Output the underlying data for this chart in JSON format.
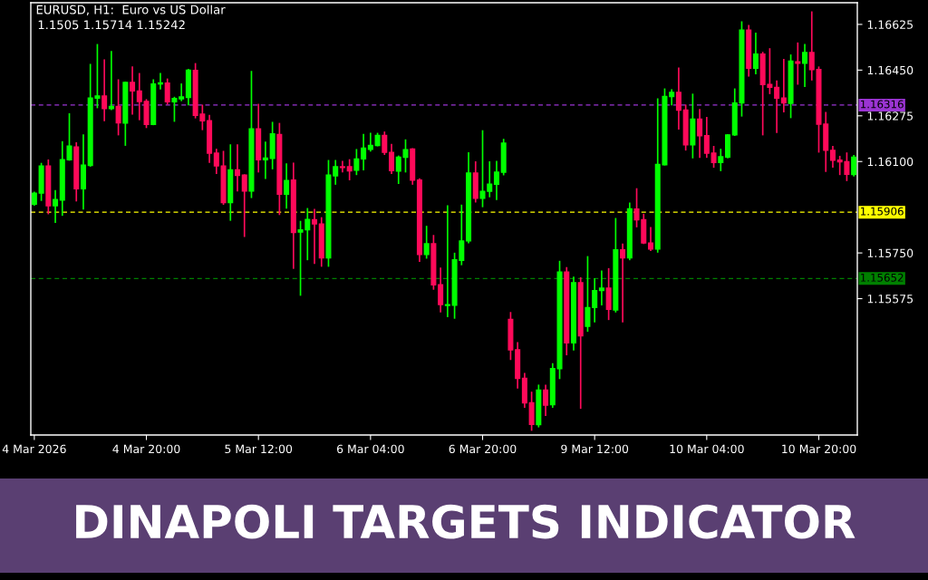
{
  "chart_data": {
    "type": "candlestick",
    "title": "DINAPOLI TARGETS INDICATOR",
    "subtitle": "EURUSD, H1:  Euro vs US Dollar",
    "annotations": [
      "1.1505 1.15714 1.15242"
    ],
    "categories": [
      "4 Mar 2026",
      null,
      null,
      null,
      null,
      null,
      null,
      null,
      null,
      null,
      null,
      null,
      null,
      null,
      null,
      null,
      "4 Mar 20:00",
      null,
      null,
      null,
      null,
      null,
      null,
      null,
      null,
      null,
      null,
      null,
      null,
      null,
      null,
      null,
      "5 Mar 12:00",
      null,
      null,
      null,
      null,
      null,
      null,
      null,
      null,
      null,
      null,
      null,
      null,
      null,
      null,
      null,
      "6 Mar 04:00",
      null,
      null,
      null,
      null,
      null,
      null,
      null,
      null,
      null,
      null,
      null,
      null,
      null,
      null,
      null,
      "6 Mar 20:00",
      null,
      null,
      null,
      null,
      null,
      null,
      null,
      null,
      null,
      null,
      null,
      null,
      null,
      null,
      null,
      "9 Mar 12:00",
      null,
      null,
      null,
      null,
      null,
      null,
      null,
      null,
      null,
      null,
      null,
      null,
      null,
      null,
      null,
      "10 Mar 04:00",
      null,
      null,
      null,
      null,
      null,
      null,
      null,
      null,
      null,
      null,
      null,
      null,
      null,
      null,
      null,
      "10 Mar 20:00",
      null,
      null,
      null,
      null,
      null
    ],
    "ohlc": [
      [
        1.15937,
        1.15982,
        1.15934,
        1.15979
      ],
      [
        1.15979,
        1.16092,
        1.15952,
        1.16083
      ],
      [
        1.16083,
        1.16105,
        1.15901,
        1.15931
      ],
      [
        1.15931,
        1.15988,
        1.15868,
        1.15954
      ],
      [
        1.15952,
        1.16175,
        1.15895,
        1.16107
      ],
      [
        1.16107,
        1.16282,
        1.16106,
        1.16159
      ],
      [
        1.16156,
        1.16171,
        1.1595,
        1.15996
      ],
      [
        1.15996,
        1.16201,
        1.15919,
        1.16086
      ],
      [
        1.16085,
        1.16471,
        1.16083,
        1.16343
      ],
      [
        1.16343,
        1.16547,
        1.16307,
        1.16351
      ],
      [
        1.16351,
        1.16488,
        1.16257,
        1.16303
      ],
      [
        1.16303,
        1.1652,
        1.163,
        1.16311
      ],
      [
        1.16311,
        1.16412,
        1.16203,
        1.16248
      ],
      [
        1.16247,
        1.16403,
        1.16163,
        1.16403
      ],
      [
        1.16403,
        1.16461,
        1.16282,
        1.1637
      ],
      [
        1.1637,
        1.16436,
        1.16261,
        1.1633
      ],
      [
        1.1633,
        1.16336,
        1.16231,
        1.16242
      ],
      [
        1.16242,
        1.16412,
        1.16242,
        1.16397
      ],
      [
        1.16397,
        1.16436,
        1.16379,
        1.16401
      ],
      [
        1.164,
        1.16415,
        1.16321,
        1.16329
      ],
      [
        1.16329,
        1.16345,
        1.16255,
        1.16341
      ],
      [
        1.1634,
        1.16396,
        1.16334,
        1.16347
      ],
      [
        1.16345,
        1.16452,
        1.16318,
        1.1645
      ],
      [
        1.16449,
        1.16474,
        1.16268,
        1.16277
      ],
      [
        1.16281,
        1.16315,
        1.16223,
        1.16256
      ],
      [
        1.16256,
        1.16276,
        1.16098,
        1.16132
      ],
      [
        1.16132,
        1.16146,
        1.16055,
        1.16083
      ],
      [
        1.16083,
        1.16138,
        1.15937,
        1.15943
      ],
      [
        1.15943,
        1.16163,
        1.15876,
        1.16068
      ],
      [
        1.16068,
        1.16163,
        1.15988,
        1.16047
      ],
      [
        1.16048,
        1.16048,
        1.15814,
        1.15987
      ],
      [
        1.15987,
        1.16444,
        1.15963,
        1.16225
      ],
      [
        1.16225,
        1.16318,
        1.16061,
        1.16107
      ],
      [
        1.16107,
        1.16173,
        1.16036,
        1.16113
      ],
      [
        1.16112,
        1.16249,
        1.16073,
        1.16206
      ],
      [
        1.16203,
        1.16245,
        1.15898,
        1.15975
      ],
      [
        1.15975,
        1.1609,
        1.15922,
        1.16027
      ],
      [
        1.16029,
        1.16093,
        1.15692,
        1.15828
      ],
      [
        1.1583,
        1.1587,
        1.15589,
        1.15838
      ],
      [
        1.15839,
        1.15919,
        1.15725,
        1.15878
      ],
      [
        1.15877,
        1.15916,
        1.15711,
        1.15861
      ],
      [
        1.15861,
        1.15884,
        1.157,
        1.15731
      ],
      [
        1.15731,
        1.16103,
        1.157,
        1.16048
      ],
      [
        1.16045,
        1.16103,
        1.16014,
        1.1608
      ],
      [
        1.1608,
        1.161,
        1.16061,
        1.16077
      ],
      [
        1.1608,
        1.16106,
        1.16031,
        1.16064
      ],
      [
        1.16067,
        1.16145,
        1.16051,
        1.1611
      ],
      [
        1.1611,
        1.16203,
        1.16069,
        1.16151
      ],
      [
        1.16147,
        1.16207,
        1.16141,
        1.16162
      ],
      [
        1.16161,
        1.16207,
        1.16161,
        1.162
      ],
      [
        1.162,
        1.16212,
        1.16128,
        1.16135
      ],
      [
        1.16135,
        1.16165,
        1.16055,
        1.16065
      ],
      [
        1.16063,
        1.1612,
        1.16017,
        1.16117
      ],
      [
        1.16116,
        1.16182,
        1.16061,
        1.16145
      ],
      [
        1.16148,
        1.16148,
        1.16014,
        1.16029
      ],
      [
        1.16029,
        1.16033,
        1.15719,
        1.15744
      ],
      [
        1.15744,
        1.15851,
        1.15731,
        1.15785
      ],
      [
        1.15785,
        1.15816,
        1.15612,
        1.15628
      ],
      [
        1.15628,
        1.15691,
        1.15525,
        1.15552
      ],
      [
        1.15549,
        1.1593,
        1.15507,
        1.15552
      ],
      [
        1.1555,
        1.15748,
        1.15501,
        1.15724
      ],
      [
        1.15722,
        1.15932,
        1.15706,
        1.15796
      ],
      [
        1.15796,
        1.16133,
        1.1579,
        1.16056
      ],
      [
        1.16056,
        1.16098,
        1.15946,
        1.15959
      ],
      [
        1.15959,
        1.16217,
        1.15928,
        1.15986
      ],
      [
        1.15986,
        1.16098,
        1.15966,
        1.16013
      ],
      [
        1.16013,
        1.161,
        1.15955,
        1.16059
      ],
      [
        1.16059,
        1.16184,
        1.1605,
        1.1617
      ],
      [
        1.15496,
        1.15521,
        1.15343,
        1.15379
      ],
      [
        1.15379,
        1.15406,
        1.15234,
        1.1527
      ],
      [
        1.1527,
        1.15288,
        1.1516,
        1.15176
      ],
      [
        1.15176,
        1.15216,
        1.15072,
        1.15094
      ],
      [
        1.15093,
        1.15243,
        1.15085,
        1.15225
      ],
      [
        1.15225,
        1.15243,
        1.15129,
        1.15167
      ],
      [
        1.15169,
        1.15325,
        1.1516,
        1.15307
      ],
      [
        1.15307,
        1.15717,
        1.1527,
        1.15677
      ],
      [
        1.15677,
        1.15693,
        1.15361,
        1.15406
      ],
      [
        1.15406,
        1.15656,
        1.15379,
        1.15636
      ],
      [
        1.15636,
        1.15654,
        1.15156,
        1.15433
      ],
      [
        1.15469,
        1.15735,
        1.15451,
        1.15541
      ],
      [
        1.15541,
        1.1565,
        1.15487,
        1.15606
      ],
      [
        1.15606,
        1.1568,
        1.15552,
        1.15615
      ],
      [
        1.15615,
        1.15689,
        1.15496,
        1.15534
      ],
      [
        1.15532,
        1.15881,
        1.15525,
        1.15762
      ],
      [
        1.15762,
        1.15783,
        1.15487,
        1.15731
      ],
      [
        1.15731,
        1.1594,
        1.15725,
        1.15919
      ],
      [
        1.15918,
        1.15995,
        1.15851,
        1.15877
      ],
      [
        1.15877,
        1.15897,
        1.15787,
        1.15788
      ],
      [
        1.15788,
        1.15846,
        1.1576,
        1.15765
      ],
      [
        1.15765,
        1.16339,
        1.15754,
        1.16089
      ],
      [
        1.16088,
        1.16377,
        1.16088,
        1.16349
      ],
      [
        1.16349,
        1.16374,
        1.16318,
        1.16365
      ],
      [
        1.16365,
        1.16457,
        1.16225,
        1.16297
      ],
      [
        1.16297,
        1.16315,
        1.16145,
        1.16164
      ],
      [
        1.16164,
        1.16357,
        1.16115,
        1.16262
      ],
      [
        1.16262,
        1.16298,
        1.16117,
        1.16199
      ],
      [
        1.16199,
        1.16268,
        1.16117,
        1.16132
      ],
      [
        1.16132,
        1.16157,
        1.16079,
        1.16096
      ],
      [
        1.16096,
        1.16146,
        1.16066,
        1.16118
      ],
      [
        1.16117,
        1.16202,
        1.16115,
        1.16202
      ],
      [
        1.16202,
        1.16377,
        1.16201,
        1.16324
      ],
      [
        1.16324,
        1.16634,
        1.16275,
        1.16603
      ],
      [
        1.16603,
        1.1662,
        1.16428,
        1.16457
      ],
      [
        1.16457,
        1.16591,
        1.16437,
        1.16511
      ],
      [
        1.16511,
        1.16517,
        1.16203,
        1.16395
      ],
      [
        1.16395,
        1.16531,
        1.16361,
        1.16384
      ],
      [
        1.16384,
        1.16408,
        1.16212,
        1.16343
      ],
      [
        1.16343,
        1.1649,
        1.16291,
        1.16324
      ],
      [
        1.16323,
        1.16507,
        1.16269,
        1.16484
      ],
      [
        1.16482,
        1.16553,
        1.16397,
        1.16476
      ],
      [
        1.16476,
        1.16547,
        1.16388,
        1.16517
      ],
      [
        1.16517,
        1.16672,
        1.16413,
        1.16452
      ],
      [
        1.16452,
        1.16461,
        1.16137,
        1.16243
      ],
      [
        1.16243,
        1.16287,
        1.16063,
        1.16143
      ],
      [
        1.16143,
        1.16157,
        1.16079,
        1.16105
      ],
      [
        1.16105,
        1.16119,
        1.16051,
        1.16099
      ],
      [
        1.16099,
        1.16132,
        1.16028,
        1.16051
      ],
      [
        1.1605,
        1.16122,
        1.16046,
        1.16117
      ]
    ],
    "colors": [
      "#00ff00",
      "#00ff00",
      "#ff0a5a",
      "#00ff00",
      "#00ff00",
      "#00ff00",
      "#ff0a5a",
      "#00ff00",
      "#00ff00",
      "#00ff00",
      "#ff0a5a",
      "#00ff00",
      "#ff0a5a",
      "#00ff00",
      "#ff0a5a",
      "#ff0a5a",
      "#ff0a5a",
      "#00ff00",
      "#00ff00",
      "#ff0a5a",
      "#00ff00",
      "#00ff00",
      "#00ff00",
      "#ff0a5a",
      "#ff0a5a",
      "#ff0a5a",
      "#ff0a5a",
      "#ff0a5a",
      "#00ff00",
      "#ff0a5a",
      "#ff0a5a",
      "#00ff00",
      "#ff0a5a",
      "#00ff00",
      "#00ff00",
      "#ff0a5a",
      "#00ff00",
      "#ff0a5a",
      "#00ff00",
      "#00ff00",
      "#ff0a5a",
      "#ff0a5a",
      "#00ff00",
      "#00ff00",
      "#ff0a5a",
      "#ff0a5a",
      "#00ff00",
      "#00ff00",
      "#00ff00",
      "#00ff00",
      "#ff0a5a",
      "#ff0a5a",
      "#00ff00",
      "#00ff00",
      "#ff0a5a",
      "#ff0a5a",
      "#00ff00",
      "#ff0a5a",
      "#ff0a5a",
      "#00ff00",
      "#00ff00",
      "#00ff00",
      "#00ff00",
      "#ff0a5a",
      "#00ff00",
      "#00ff00",
      "#00ff00",
      "#00ff00",
      "#ff0a5a",
      "#ff0a5a",
      "#ff0a5a",
      "#ff0a5a",
      "#00ff00",
      "#ff0a5a",
      "#00ff00",
      "#00ff00",
      "#ff0a5a",
      "#00ff00",
      "#ff0a5a",
      "#00ff00",
      "#00ff00",
      "#00ff00",
      "#ff0a5a",
      "#00ff00",
      "#ff0a5a",
      "#00ff00",
      "#ff0a5a",
      "#ff0a5a",
      "#ff0a5a",
      "#00ff00",
      "#00ff00",
      "#00ff00",
      "#ff0a5a",
      "#ff0a5a",
      "#00ff00",
      "#ff0a5a",
      "#ff0a5a",
      "#ff0a5a",
      "#00ff00",
      "#00ff00",
      "#00ff00",
      "#00ff00",
      "#ff0a5a",
      "#00ff00",
      "#ff0a5a",
      "#ff0a5a",
      "#ff0a5a",
      "#ff0a5a",
      "#00ff00",
      "#ff0a5a",
      "#00ff00",
      "#ff0a5a",
      "#ff0a5a",
      "#ff0a5a",
      "#ff0a5a",
      "#ff0a5a",
      "#ff0a5a",
      "#00ff00"
    ],
    "ylim": [
      1.15053,
      1.16708
    ],
    "yticks": [
      1.15575,
      {
        "value": 1.1575,
        "label": "1.15750"
      },
      {
        "value": 1.161,
        "label": "1.16100"
      },
      1.16275,
      {
        "value": 1.1645,
        "label": "1.16450"
      },
      1.16625
    ],
    "ref_lines": [
      {
        "axis": "y",
        "value": 1.16316,
        "label": "1.16316",
        "color": "#9b34d3",
        "line_style": "dashed"
      },
      {
        "axis": "y",
        "value": 1.15906,
        "label": "1.15906",
        "color": "#ffff00",
        "line_style": "dashed"
      },
      {
        "axis": "y",
        "value": 1.15652,
        "label": "1.15652",
        "color": "#008000",
        "line_style": "dashed"
      }
    ],
    "grid": false
  }
}
